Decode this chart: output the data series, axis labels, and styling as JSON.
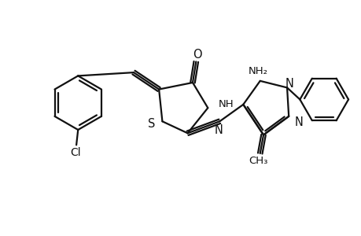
{
  "bg_color": "#ffffff",
  "line_color": "#111111",
  "line_width": 1.6,
  "font_size": 9.5,
  "figsize": [
    4.6,
    3.0
  ],
  "dpi": 100,
  "xlim": [
    -4.8,
    5.8
  ],
  "ylim": [
    -2.8,
    2.8
  ]
}
